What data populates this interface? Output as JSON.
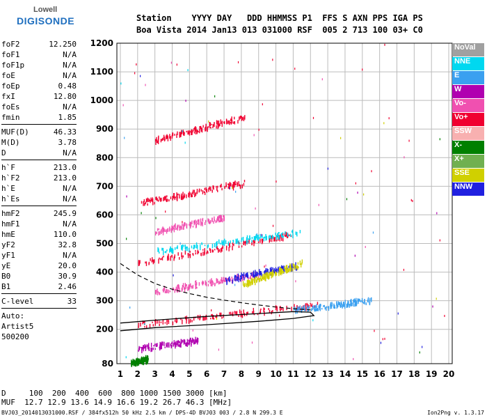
{
  "logo": {
    "line1": "Lowell",
    "line2": "DIGISONDE"
  },
  "header": {
    "line1": "Station    YYYY DAY   DDD HHMMSS P1  FFS S AXN PPS IGA PS",
    "line2": "Boa Vista 2014 Jan13 013 031000 RSF  005 2 713 100 03+ C0"
  },
  "params_group1": [
    {
      "label": "foF2",
      "value": "12.250"
    },
    {
      "label": "foF1",
      "value": "N/A"
    },
    {
      "label": "foF1p",
      "value": "N/A"
    },
    {
      "label": "foE",
      "value": "N/A"
    },
    {
      "label": "foEp",
      "value": "0.48"
    },
    {
      "label": "fxI",
      "value": "12.80"
    },
    {
      "label": "foEs",
      "value": "N/A"
    },
    {
      "label": "fmin",
      "value": "1.85"
    }
  ],
  "params_group2": [
    {
      "label": "MUF(D)",
      "value": "46.33"
    },
    {
      "label": "M(D)",
      "value": "3.78"
    },
    {
      "label": "D",
      "value": "N/A"
    }
  ],
  "params_group3": [
    {
      "label": "h`F",
      "value": "213.0"
    },
    {
      "label": "h`F2",
      "value": "213.0"
    },
    {
      "label": "h`E",
      "value": "N/A"
    },
    {
      "label": "h`Es",
      "value": "N/A"
    }
  ],
  "params_group4": [
    {
      "label": "hmF2",
      "value": "245.9"
    },
    {
      "label": "hmF1",
      "value": "N/A"
    },
    {
      "label": "hmE",
      "value": "110.0"
    },
    {
      "label": "yF2",
      "value": "32.8"
    },
    {
      "label": "yF1",
      "value": "N/A"
    },
    {
      "label": "yE",
      "value": "20.0"
    },
    {
      "label": "B0",
      "value": "30.9"
    },
    {
      "label": "B1",
      "value": "2.46"
    }
  ],
  "params_group5": [
    {
      "label": "C-level",
      "value": "33"
    }
  ],
  "autoscaling": {
    "line1": "Auto:",
    "line2": "Artist5",
    "line3": "500200"
  },
  "legend": [
    {
      "label": "NoVal",
      "color": "#a0a0a0"
    },
    {
      "label": "NNE",
      "color": "#00d8f0"
    },
    {
      "label": "E",
      "color": "#3aa0f0"
    },
    {
      "label": "W",
      "color": "#b000b0"
    },
    {
      "label": "Vo-",
      "color": "#f050b0"
    },
    {
      "label": "Vo+",
      "color": "#f00030"
    },
    {
      "label": "SSW",
      "color": "#f8b0b0"
    },
    {
      "label": "X-",
      "color": "#008000"
    },
    {
      "label": "X+",
      "color": "#70b050"
    },
    {
      "label": "SSE",
      "color": "#d0d000"
    },
    {
      "label": "NNW",
      "color": "#2020e0"
    }
  ],
  "bottom": {
    "line1": "D     100  200  400  600  800 1000 1500 3000 [km]",
    "line2": "MUF  12.7 12.9 13.6 14.9 16.6 19.2 26.7 46.3 [MHz]"
  },
  "footer": "BVJ03_2014013031000.RSF / 384fx512h 50 kHz 2.5 km / DPS-4D BVJ03 003 / 2.8 N 299.3 E",
  "version": "Ion2Png v. 1.3.17",
  "chart_data": {
    "type": "scatter",
    "x_ticks": [
      1,
      2,
      3,
      4,
      5,
      6,
      7,
      8,
      9,
      10,
      11,
      12,
      13,
      14,
      15,
      16,
      17,
      18,
      19,
      20
    ],
    "y_ticks": [
      80,
      200,
      300,
      400,
      500,
      600,
      700,
      800,
      900,
      1000,
      1100,
      1200
    ],
    "xlim": [
      0.8,
      20.2
    ],
    "ylim": [
      80,
      1200
    ],
    "grid": true,
    "traces": [
      {
        "color": "#f00030",
        "x": [
          2.0,
          12.5
        ],
        "y": [
          215,
          285
        ]
      },
      {
        "color": "#f00030",
        "x": [
          2.0,
          11.0
        ],
        "y": [
          430,
          530
        ]
      },
      {
        "color": "#f00030",
        "x": [
          2.2,
          8.2
        ],
        "y": [
          640,
          710
        ]
      },
      {
        "color": "#f00030",
        "x": [
          3.0,
          8.2
        ],
        "y": [
          860,
          940
        ]
      },
      {
        "color": "#f050b0",
        "x": [
          3.0,
          9.0
        ],
        "y": [
          330,
          390
        ]
      },
      {
        "color": "#f050b0",
        "x": [
          3.0,
          7.0
        ],
        "y": [
          540,
          590
        ]
      },
      {
        "color": "#00d8f0",
        "x": [
          3.0,
          11.5
        ],
        "y": [
          470,
          540
        ]
      },
      {
        "color": "#3aa0f0",
        "x": [
          11.0,
          15.5
        ],
        "y": [
          265,
          300
        ]
      },
      {
        "color": "#2020e0",
        "x": [
          7.0,
          11.2
        ],
        "y": [
          370,
          420
        ]
      },
      {
        "color": "#d0d000",
        "x": [
          8.0,
          11.5
        ],
        "y": [
          355,
          430
        ]
      },
      {
        "color": "#b000b0",
        "x": [
          2.0,
          5.5
        ],
        "y": [
          130,
          160
        ]
      },
      {
        "color": "#008000",
        "x": [
          1.6,
          2.6
        ],
        "y": [
          80,
          95
        ]
      }
    ],
    "profile_solid": {
      "x": [
        1.0,
        3.0,
        6.0,
        9.0,
        11.0,
        12.2,
        12.0,
        11.0,
        9.0,
        6.0,
        3.0,
        1.0
      ],
      "y": [
        195,
        206,
        216,
        228,
        238,
        248,
        260,
        262,
        255,
        245,
        232,
        222
      ]
    },
    "profile_dashed": {
      "x": [
        1.0,
        2.0,
        3.0,
        4.0,
        5.0,
        6.0,
        7.0,
        8.0,
        9.0,
        10.0,
        11.0,
        12.0
      ],
      "y": [
        430,
        390,
        360,
        340,
        325,
        312,
        302,
        293,
        285,
        278,
        272,
        268
      ]
    }
  }
}
